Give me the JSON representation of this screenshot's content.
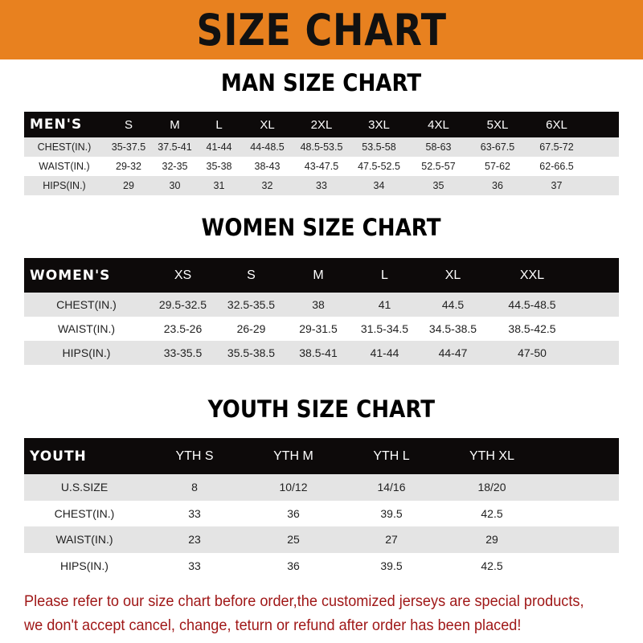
{
  "banner": {
    "title": "SIZE CHART",
    "color": "#e8811f"
  },
  "men": {
    "title": "MAN SIZE CHART",
    "header": [
      "MEN'S",
      "S",
      "M",
      "L",
      "XL",
      "2XL",
      "3XL",
      "4XL",
      "5XL",
      "6XL"
    ],
    "rows": [
      [
        "CHEST(IN.)",
        "35-37.5",
        "37.5-41",
        "41-44",
        "44-48.5",
        "48.5-53.5",
        "53.5-58",
        "58-63",
        "63-67.5",
        "67.5-72"
      ],
      [
        "WAIST(IN.)",
        "29-32",
        "32-35",
        "35-38",
        "38-43",
        "43-47.5",
        "47.5-52.5",
        "52.5-57",
        "57-62",
        "62-66.5"
      ],
      [
        "HIPS(IN.)",
        "29",
        "30",
        "31",
        "32",
        "33",
        "34",
        "35",
        "36",
        "37"
      ]
    ]
  },
  "women": {
    "title": "WOMEN SIZE CHART",
    "header": [
      "WOMEN'S",
      "XS",
      "S",
      "M",
      "L",
      "XL",
      "XXL"
    ],
    "rows": [
      [
        "CHEST(IN.)",
        "29.5-32.5",
        "32.5-35.5",
        "38",
        "41",
        "44.5",
        "44.5-48.5"
      ],
      [
        "WAIST(IN.)",
        "23.5-26",
        "26-29",
        "29-31.5",
        "31.5-34.5",
        "34.5-38.5",
        "38.5-42.5"
      ],
      [
        "HIPS(IN.)",
        "33-35.5",
        "35.5-38.5",
        "38.5-41",
        "41-44",
        "44-47",
        "47-50"
      ]
    ]
  },
  "youth": {
    "title": "YOUTH SIZE CHART",
    "header": [
      "YOUTH",
      "YTH S",
      "YTH M",
      "YTH L",
      "YTH XL"
    ],
    "rows": [
      [
        "U.S.SIZE",
        "8",
        "10/12",
        "14/16",
        "18/20"
      ],
      [
        "CHEST(IN.)",
        "33",
        "36",
        "39.5",
        "42.5"
      ],
      [
        "WAIST(IN.)",
        "23",
        "25",
        "27",
        "29"
      ],
      [
        "HIPS(IN.)",
        "33",
        "36",
        "39.5",
        "42.5"
      ]
    ]
  },
  "note": {
    "line1": "Please refer to our size chart before order,the customized jerseys are special products,",
    "line2": "we don't accept cancel, change, teturn or refund after order has been placed!",
    "color": "#a01818"
  }
}
